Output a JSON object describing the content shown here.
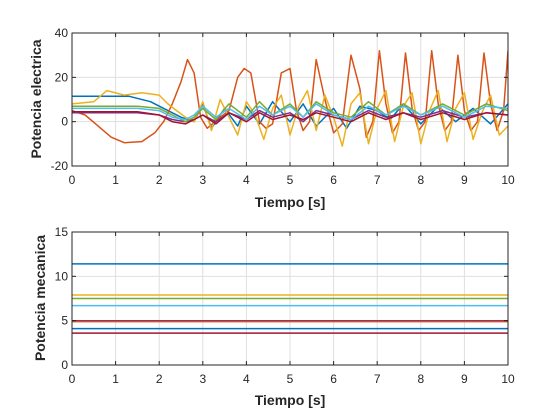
{
  "colors": [
    "#0072bd",
    "#d95319",
    "#edb120",
    "#7e2f8e",
    "#77ac30",
    "#4dbeee",
    "#a2142f"
  ],
  "chart_data": [
    {
      "type": "line",
      "title": "",
      "xlabel": "Tiempo [s]",
      "ylabel": "Potencia electrica",
      "xlim": [
        0,
        10
      ],
      "ylim": [
        -20,
        40
      ],
      "xticks": [
        0,
        1,
        2,
        3,
        4,
        5,
        6,
        7,
        8,
        9,
        10
      ],
      "yticks": [
        -20,
        0,
        20,
        40
      ],
      "grid": true,
      "series": [
        {
          "color": "#0072bd",
          "x": [
            0,
            1.3,
            1.8,
            2.2,
            2.5,
            2.8,
            3.0,
            3.2,
            3.5,
            3.8,
            4.0,
            4.3,
            4.6,
            5.0,
            5.3,
            5.6,
            6.0,
            6.3,
            6.6,
            7.0,
            7.3,
            7.6,
            8.0,
            8.4,
            8.8,
            9.2,
            9.6,
            10
          ],
          "y": [
            11.5,
            11.5,
            9,
            5,
            2,
            0,
            8,
            -3,
            6,
            -2,
            7,
            -1,
            9,
            0,
            8,
            -2,
            6,
            -3,
            7,
            5,
            1,
            8,
            -1,
            7,
            0,
            6,
            -1,
            8
          ]
        },
        {
          "color": "#d95319",
          "x": [
            0,
            0.3,
            0.6,
            0.9,
            1.2,
            1.6,
            1.9,
            2.1,
            2.3,
            2.5,
            2.65,
            2.8,
            2.95,
            3.1,
            3.4,
            3.6,
            3.8,
            3.95,
            4.1,
            4.3,
            4.45,
            4.6,
            4.8,
            5.0,
            5.15,
            5.3,
            5.45,
            5.6,
            5.8,
            6.0,
            6.2,
            6.4,
            6.6,
            6.75,
            6.9,
            7.05,
            7.2,
            7.35,
            7.5,
            7.65,
            7.8,
            7.95,
            8.1,
            8.25,
            8.4,
            8.55,
            8.7,
            8.85,
            9.0,
            9.15,
            9.3,
            9.45,
            9.6,
            9.75,
            9.9,
            10
          ],
          "y": [
            5,
            3,
            -2,
            -7,
            -9.5,
            -9,
            -5,
            0,
            8,
            18,
            28,
            22,
            2,
            -3,
            2,
            5,
            20,
            24,
            22,
            0,
            -3,
            -1,
            22,
            24,
            5,
            -4,
            0,
            28,
            10,
            -5,
            -1,
            30,
            15,
            -7,
            0,
            32,
            8,
            -5,
            0,
            31,
            6,
            -4,
            0,
            32,
            8,
            -4,
            0,
            30,
            5,
            -4,
            0,
            31,
            8,
            -4,
            5,
            32
          ]
        },
        {
          "color": "#edb120",
          "x": [
            0,
            0.5,
            0.8,
            1.2,
            1.6,
            2.0,
            2.2,
            2.4,
            2.6,
            2.8,
            3.0,
            3.2,
            3.4,
            3.6,
            3.8,
            4.0,
            4.2,
            4.4,
            4.6,
            4.8,
            5.0,
            5.2,
            5.4,
            5.6,
            5.8,
            6.0,
            6.2,
            6.4,
            6.6,
            6.8,
            7.0,
            7.2,
            7.4,
            7.6,
            7.8,
            8.0,
            8.2,
            8.4,
            8.6,
            8.8,
            9.0,
            9.2,
            9.4,
            9.6,
            9.8,
            10
          ],
          "y": [
            8,
            9,
            14,
            12,
            13,
            12,
            8,
            5,
            2,
            0,
            9,
            -4,
            10,
            2,
            -6,
            9,
            3,
            -8,
            6,
            12,
            -6,
            7,
            14,
            -4,
            12,
            2,
            -11,
            8,
            13,
            -10,
            6,
            14,
            -9,
            7,
            13,
            -10,
            5,
            14,
            -9,
            6,
            13,
            -8,
            4,
            12,
            -6,
            -2
          ]
        },
        {
          "color": "#7e2f8e",
          "x": [
            0,
            1.5,
            2.0,
            2.3,
            2.6,
            2.8,
            3.0,
            3.3,
            3.6,
            4.0,
            4.3,
            4.6,
            5.0,
            5.3,
            5.6,
            6.0,
            6.4,
            6.8,
            7.2,
            7.6,
            8.0,
            8.5,
            9.0,
            9.5,
            10
          ],
          "y": [
            4,
            4,
            3,
            1,
            0,
            1,
            3,
            0,
            4,
            1,
            5,
            2,
            4,
            0,
            5,
            3,
            1,
            5,
            2,
            4,
            2,
            5,
            2,
            4,
            3
          ]
        },
        {
          "color": "#77ac30",
          "x": [
            0,
            1.5,
            2.0,
            2.3,
            2.6,
            2.8,
            3.0,
            3.3,
            3.6,
            4.0,
            4.3,
            4.6,
            5.0,
            5.3,
            5.6,
            6.0,
            6.4,
            6.8,
            7.2,
            7.6,
            8.0,
            8.5,
            9.0,
            9.5,
            10
          ],
          "y": [
            7,
            7,
            6,
            3,
            0,
            2,
            6,
            1,
            8,
            2,
            9,
            3,
            8,
            2,
            9,
            4,
            2,
            9,
            3,
            8,
            3,
            8,
            3,
            8,
            5
          ]
        },
        {
          "color": "#4dbeee",
          "x": [
            0,
            1.5,
            2.0,
            2.3,
            2.6,
            2.8,
            3.0,
            3.3,
            3.6,
            4.0,
            4.3,
            4.6,
            5.0,
            5.3,
            5.6,
            6.0,
            6.4,
            6.8,
            7.2,
            7.6,
            8.0,
            8.5,
            9.0,
            9.5,
            10
          ],
          "y": [
            6,
            6,
            5,
            2,
            1,
            3,
            7,
            2,
            6,
            1,
            7,
            3,
            7,
            2,
            8,
            3,
            1,
            7,
            3,
            7,
            3,
            7,
            2,
            7,
            6
          ]
        },
        {
          "color": "#a2142f",
          "x": [
            0,
            1.5,
            2.0,
            2.3,
            2.6,
            2.8,
            3.0,
            3.3,
            3.6,
            4.0,
            4.3,
            4.6,
            5.0,
            5.3,
            5.6,
            6.0,
            6.4,
            6.8,
            7.2,
            7.6,
            8.0,
            8.5,
            9.0,
            9.5,
            10
          ],
          "y": [
            4.5,
            4.5,
            3,
            0,
            -1,
            1,
            3,
            -1,
            4,
            0,
            4,
            1,
            3,
            1,
            4,
            2,
            0,
            4,
            1,
            4,
            1,
            4,
            1,
            4,
            3
          ]
        }
      ]
    },
    {
      "type": "line",
      "title": "",
      "xlabel": "Tiempo [s]",
      "ylabel": "Potencia mecanica",
      "xlim": [
        0,
        10
      ],
      "ylim": [
        0,
        15
      ],
      "xticks": [
        0,
        1,
        2,
        3,
        4,
        5,
        6,
        7,
        8,
        9,
        10
      ],
      "yticks": [
        0,
        5,
        10,
        15
      ],
      "grid": true,
      "series": [
        {
          "color": "#0072bd",
          "x": [
            0,
            10
          ],
          "y": [
            11.4,
            11.4
          ]
        },
        {
          "color": "#edb120",
          "x": [
            0,
            10
          ],
          "y": [
            7.9,
            7.9
          ]
        },
        {
          "color": "#77ac30",
          "x": [
            0,
            10
          ],
          "y": [
            7.5,
            7.5
          ]
        },
        {
          "color": "#4dbeee",
          "x": [
            0,
            10
          ],
          "y": [
            6.7,
            6.7
          ]
        },
        {
          "color": "#7e2f8e",
          "x": [
            0,
            10
          ],
          "y": [
            5.0,
            5.0
          ]
        },
        {
          "color": "#d95319",
          "x": [
            0,
            10
          ],
          "y": [
            4.9,
            4.9
          ]
        },
        {
          "color": "#0072bd",
          "x": [
            0,
            10
          ],
          "y": [
            4.1,
            4.1
          ]
        },
        {
          "color": "#a2142f",
          "x": [
            0,
            10
          ],
          "y": [
            3.6,
            3.6
          ]
        }
      ]
    }
  ]
}
